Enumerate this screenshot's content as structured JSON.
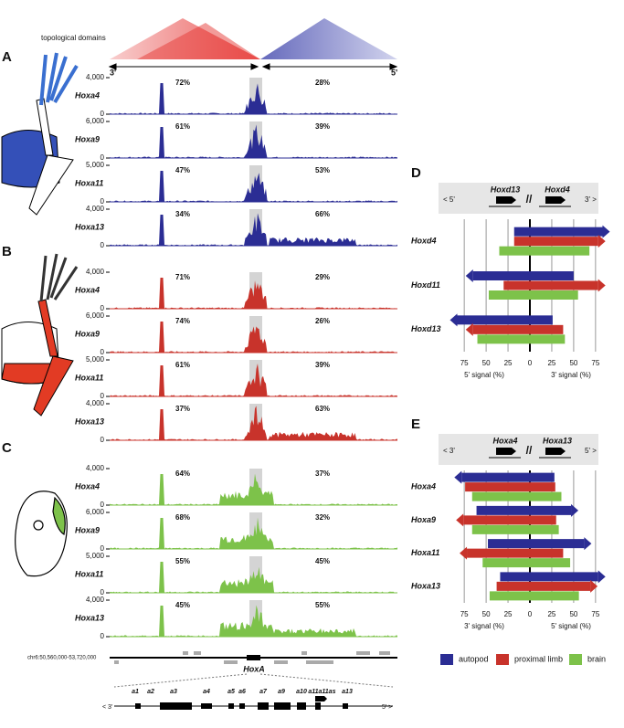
{
  "figure": {
    "heatmap_label": "topological domains",
    "domain_arrows": {
      "left": "3'",
      "right": "5'"
    },
    "track_panels": [
      {
        "letter": "A",
        "color": "#2b2d94",
        "tracks": [
          {
            "gene": "Hoxa4",
            "yticks": [
              0,
              {
                "value": 4000,
                "label": "4,000"
              }
            ],
            "left_pct": "72%",
            "right_pct": "28%"
          },
          {
            "gene": "Hoxa9",
            "yticks": [
              0,
              {
                "value": 6000,
                "label": "6,000"
              }
            ],
            "left_pct": "61%",
            "right_pct": "39%"
          },
          {
            "gene": "Hoxa11",
            "yticks": [
              0,
              {
                "value": 5000,
                "label": "5,000"
              }
            ],
            "left_pct": "47%",
            "right_pct": "53%"
          },
          {
            "gene": "Hoxa13",
            "yticks": [
              0,
              {
                "value": 4000,
                "label": "4,000"
              }
            ],
            "left_pct": "34%",
            "right_pct": "66%"
          }
        ]
      },
      {
        "letter": "B",
        "color": "#c8332b",
        "tracks": [
          {
            "gene": "Hoxa4",
            "yticks": [
              0,
              {
                "value": 4000,
                "label": "4,000"
              }
            ],
            "left_pct": "71%",
            "right_pct": "29%"
          },
          {
            "gene": "Hoxa9",
            "yticks": [
              0,
              {
                "value": 6000,
                "label": "6,000"
              }
            ],
            "left_pct": "74%",
            "right_pct": "26%"
          },
          {
            "gene": "Hoxa11",
            "yticks": [
              0,
              {
                "value": 5000,
                "label": "5,000"
              }
            ],
            "left_pct": "61%",
            "right_pct": "39%"
          },
          {
            "gene": "Hoxa13",
            "yticks": [
              0,
              {
                "value": 4000,
                "label": "4,000"
              }
            ],
            "left_pct": "37%",
            "right_pct": "63%"
          }
        ]
      },
      {
        "letter": "C",
        "color": "#7dc24a",
        "tracks": [
          {
            "gene": "Hoxa4",
            "yticks": [
              0,
              {
                "value": 4000,
                "label": "4,000"
              }
            ],
            "left_pct": "64%",
            "right_pct": "37%"
          },
          {
            "gene": "Hoxa9",
            "yticks": [
              0,
              {
                "value": 6000,
                "label": "6,000"
              }
            ],
            "left_pct": "68%",
            "right_pct": "32%"
          },
          {
            "gene": "Hoxa11",
            "yticks": [
              0,
              {
                "value": 5000,
                "label": "5,000"
              }
            ],
            "left_pct": "55%",
            "right_pct": "45%"
          },
          {
            "gene": "Hoxa13",
            "yticks": [
              0,
              {
                "value": 4000,
                "label": "4,000"
              }
            ],
            "left_pct": "45%",
            "right_pct": "55%"
          }
        ]
      }
    ],
    "locus": {
      "coordinates": "chr6:50,560,000-53,720,000",
      "cluster": "HoxA",
      "genes": [
        "a1",
        "a2",
        "a3",
        "a4",
        "a5",
        "a6",
        "a7",
        "a9",
        "a10",
        "a11",
        "a11as",
        "a13"
      ],
      "left_end": "< 3'",
      "right_end": "5' >"
    },
    "legend": [
      {
        "name": "autopod",
        "color": "#2b2d94"
      },
      {
        "name": "proximal limb",
        "color": "#c8332b"
      },
      {
        "name": "brain",
        "color": "#7dc24a"
      }
    ],
    "charts": [
      {
        "letter": "D",
        "type": "bar",
        "schematic": {
          "left_end": "< 5'",
          "left_gene": "Hoxd13",
          "break": "//",
          "right_gene": "Hoxd4",
          "right_end": "3' >"
        },
        "xlabel_left": "5' signal (%)",
        "xlabel_right": "3' signal (%)",
        "xlim": [
          -95,
          95
        ],
        "xticks": [
          {
            "value": -75,
            "label": "75"
          },
          {
            "value": -50,
            "label": "50"
          },
          {
            "value": -25,
            "label": "25"
          },
          0,
          25,
          50,
          75
        ],
        "categories": [
          "Hoxd4",
          "Hoxd11",
          "Hoxd13"
        ],
        "series": [
          {
            "values": [
              [
                -18,
                83
              ],
              [
                -65,
                50
              ],
              [
                -83,
                26
              ]
            ],
            "arrows": [
              "right",
              "left",
              "left"
            ]
          },
          {
            "values": [
              [
                -18,
                78
              ],
              [
                -30,
                78
              ],
              [
                -65,
                38
              ]
            ],
            "arrows": [
              "right",
              "right",
              "left"
            ]
          },
          {
            "values": [
              [
                -35,
                68
              ],
              [
                -47,
                55
              ],
              [
                -60,
                40
              ]
            ],
            "arrows": [
              null,
              null,
              null
            ]
          }
        ]
      },
      {
        "letter": "E",
        "type": "bar",
        "schematic": {
          "left_end": "< 3'",
          "left_gene": "Hoxa4",
          "break": "//",
          "right_gene": "Hoxa13",
          "right_end": "5' >"
        },
        "xlabel_left": "3' signal (%)",
        "xlabel_right": "5' signal (%)",
        "xlim": [
          -95,
          95
        ],
        "xticks": [
          {
            "value": -75,
            "label": "75"
          },
          {
            "value": -50,
            "label": "50"
          },
          {
            "value": -25,
            "label": "25"
          },
          0,
          25,
          50,
          75
        ],
        "categories": [
          "Hoxa4",
          "Hoxa9",
          "Hoxa11",
          "Hoxa13"
        ],
        "series": [
          {
            "values": [
              [
                -78,
                28
              ],
              [
                -61,
                47
              ],
              [
                -48,
                62
              ],
              [
                -34,
                78
              ]
            ],
            "arrows": [
              "left",
              "right",
              "right",
              "right"
            ]
          },
          {
            "values": [
              [
                -74,
                29
              ],
              [
                -76,
                30
              ],
              [
                -72,
                38
              ],
              [
                -38,
                69
              ]
            ],
            "arrows": [
              null,
              "left",
              "left",
              "right"
            ]
          },
          {
            "values": [
              [
                -66,
                36
              ],
              [
                -66,
                33
              ],
              [
                -54,
                46
              ],
              [
                -46,
                56
              ]
            ],
            "arrows": [
              null,
              null,
              null,
              null
            ]
          }
        ]
      }
    ]
  }
}
